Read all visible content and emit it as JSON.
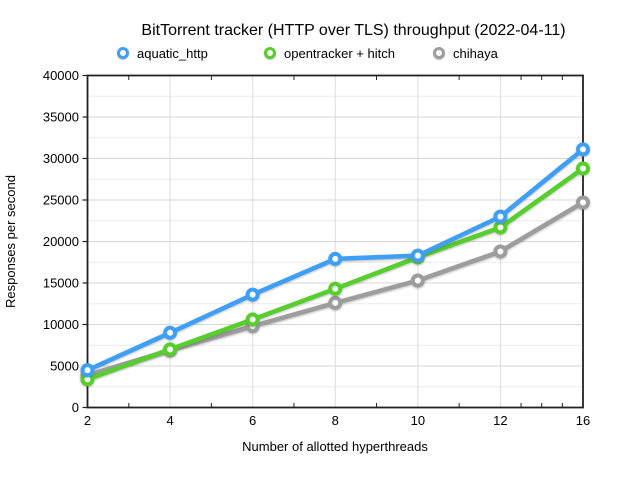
{
  "title": "BitTorrent tracker (HTTP over TLS) throughput (2022-04-11)",
  "chart_data": {
    "type": "line",
    "title": "BitTorrent tracker (HTTP over TLS) throughput (2022-04-11)",
    "xlabel": "Number of allotted hyperthreads",
    "ylabel": "Responses per second",
    "categories": [
      2,
      4,
      6,
      8,
      10,
      12,
      16
    ],
    "series": [
      {
        "name": "aquatic_http",
        "color": "#3e9ff6",
        "values": [
          4500,
          9000,
          13600,
          17900,
          18300,
          23000,
          31100
        ]
      },
      {
        "name": "opentracker + hitch",
        "color": "#56ce2b",
        "values": [
          3400,
          7000,
          10600,
          14300,
          18100,
          21700,
          28800
        ]
      },
      {
        "name": "chihaya",
        "color": "#9d9d9d",
        "values": [
          3900,
          6900,
          9800,
          12600,
          15300,
          18800,
          24700
        ]
      }
    ],
    "ylim": [
      0,
      40000
    ],
    "y_ticks": [
      0,
      5000,
      10000,
      15000,
      20000,
      25000,
      30000,
      35000,
      40000
    ],
    "y_minor_step": 2500,
    "grid": true,
    "legend_position": "top",
    "marker": "ring",
    "style": {
      "frame_color": "#222222",
      "major_grid_color": "#d7d7d7",
      "minor_grid_color": "#ebebeb",
      "vertical_grid_color": "#dedede"
    }
  }
}
